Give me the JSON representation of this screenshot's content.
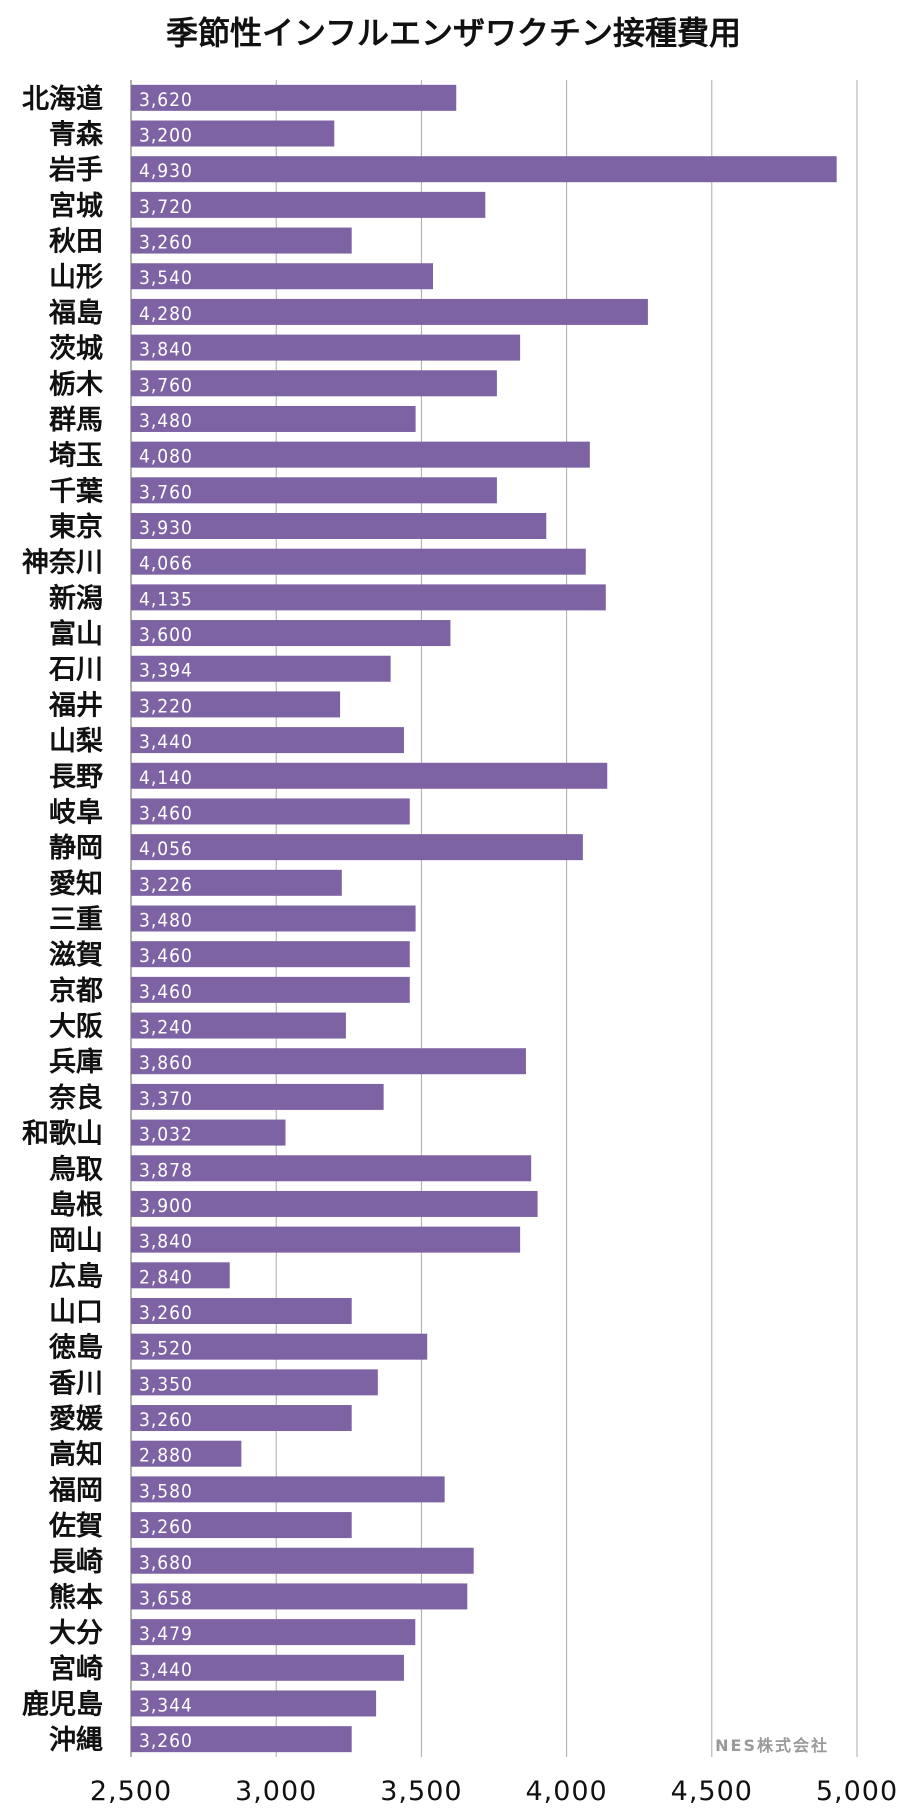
{
  "chart_data": {
    "type": "bar",
    "orientation": "horizontal",
    "title": "季節性インフルエンザワクチン接種費用",
    "categories": [
      "北海道",
      "青森",
      "岩手",
      "宮城",
      "秋田",
      "山形",
      "福島",
      "茨城",
      "栃木",
      "群馬",
      "埼玉",
      "千葉",
      "東京",
      "神奈川",
      "新潟",
      "富山",
      "石川",
      "福井",
      "山梨",
      "長野",
      "岐阜",
      "静岡",
      "愛知",
      "三重",
      "滋賀",
      "京都",
      "大阪",
      "兵庫",
      "奈良",
      "和歌山",
      "鳥取",
      "島根",
      "岡山",
      "広島",
      "山口",
      "徳島",
      "香川",
      "愛媛",
      "高知",
      "福岡",
      "佐賀",
      "長崎",
      "熊本",
      "大分",
      "宮崎",
      "鹿児島",
      "沖縄"
    ],
    "values": [
      3620,
      3200,
      4930,
      3720,
      3260,
      3540,
      4280,
      3840,
      3760,
      3480,
      4080,
      3760,
      3930,
      4066,
      4135,
      3600,
      3394,
      3220,
      3440,
      4140,
      3460,
      4056,
      3226,
      3480,
      3460,
      3460,
      3240,
      3860,
      3370,
      3032,
      3878,
      3900,
      3840,
      2840,
      3260,
      3520,
      3350,
      3260,
      2880,
      3580,
      3260,
      3680,
      3658,
      3479,
      3440,
      3344,
      3260
    ],
    "value_labels": [
      "3,620",
      "3,200",
      "4,930",
      "3,720",
      "3,260",
      "3,540",
      "4,280",
      "3,840",
      "3,760",
      "3,480",
      "4,080",
      "3,760",
      "3,930",
      "4,066",
      "4,135",
      "3,600",
      "3,394",
      "3,220",
      "3,440",
      "4,140",
      "3,460",
      "4,056",
      "3,226",
      "3,480",
      "3,460",
      "3,460",
      "3,240",
      "3,860",
      "3,370",
      "3,032",
      "3,878",
      "3,900",
      "3,840",
      "2,840",
      "3,260",
      "3,520",
      "3,350",
      "3,260",
      "2,880",
      "3,580",
      "3,260",
      "3,680",
      "3,658",
      "3,479",
      "3,440",
      "3,344",
      "3,260"
    ],
    "xlim": [
      2500,
      5000
    ],
    "x_ticks": [
      2500,
      3000,
      3500,
      4000,
      4500,
      5000
    ],
    "x_tick_labels": [
      "2,500",
      "3,000",
      "3,500",
      "4,000",
      "4,500",
      "5,000"
    ],
    "grid": "vertical",
    "bar_color": "#7d63a3",
    "grid_color": "#aaaaaa"
  },
  "watermark": "NES株式会社"
}
